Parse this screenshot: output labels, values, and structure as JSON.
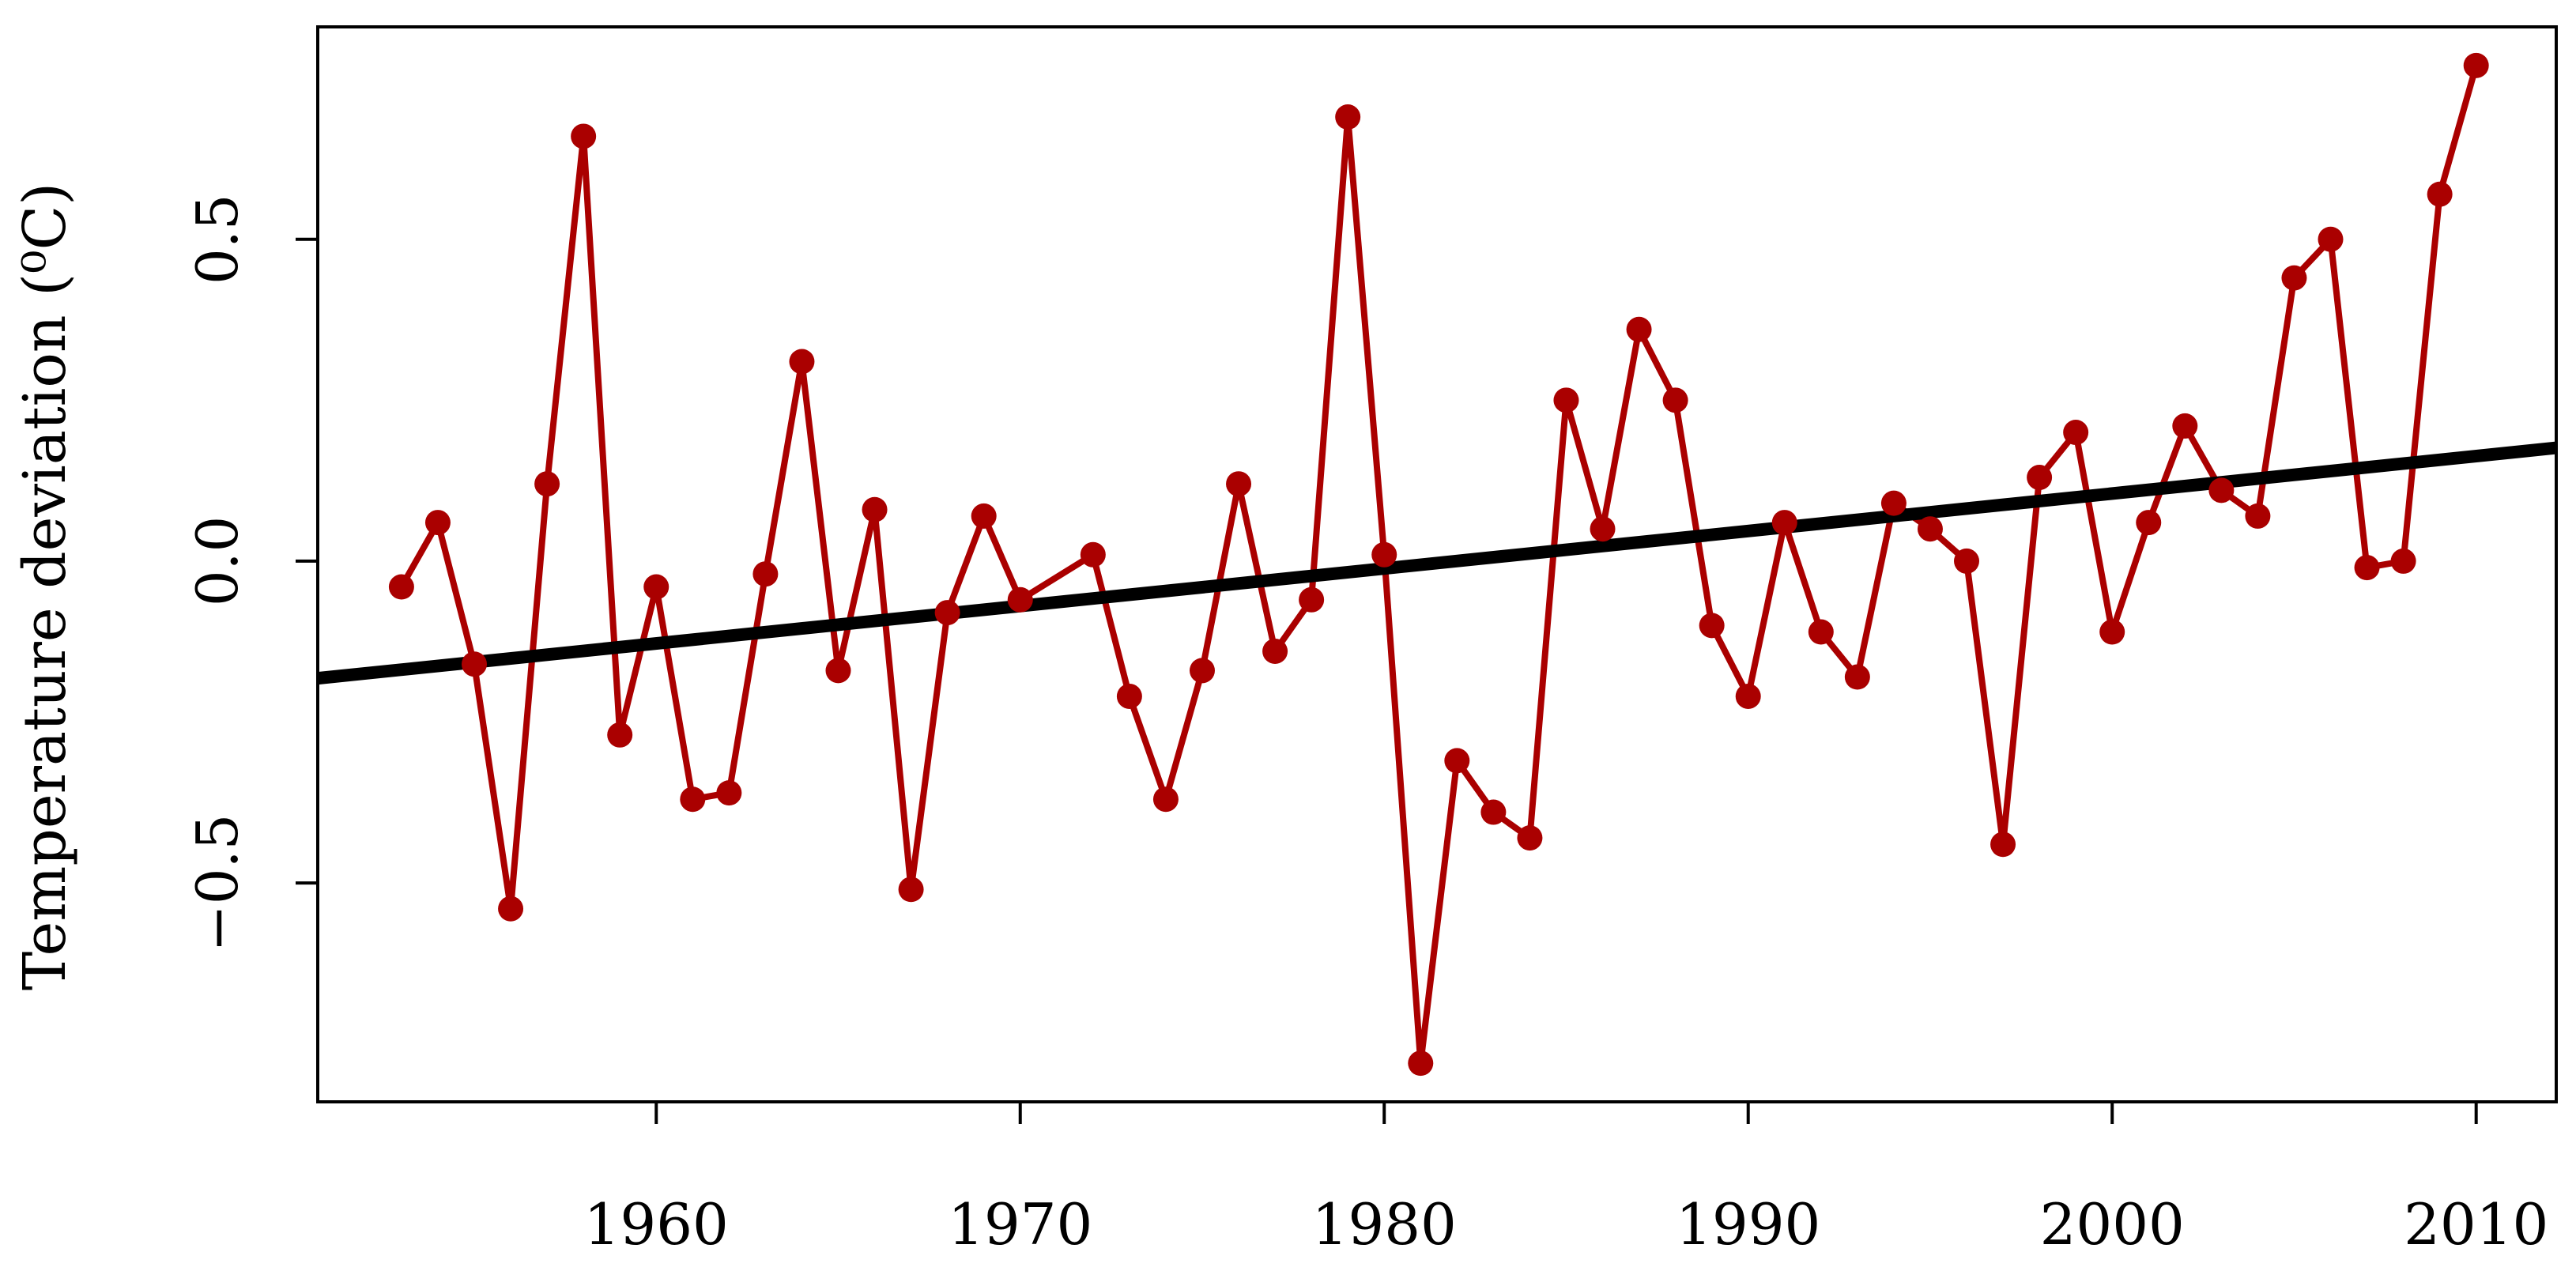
{
  "chart_data": {
    "type": "line",
    "title": "",
    "xlabel": "",
    "ylabel": "Temperature deviation (⁰C)",
    "xlim": [
      1950.7,
      2012.2
    ],
    "ylim": [
      -0.84,
      0.83
    ],
    "grid": false,
    "x_ticks": [
      1960,
      1970,
      1980,
      1990,
      2000,
      2010
    ],
    "x_tick_labels": [
      "1960",
      "1970",
      "1980",
      "1990",
      "2000",
      "2010"
    ],
    "y_ticks": [
      -0.5,
      0.0,
      0.5
    ],
    "y_tick_labels": [
      "−0.5",
      "0.0",
      "0.5"
    ],
    "series": [
      {
        "color": "#AA0000",
        "marker": "circle",
        "x": [
          1953,
          1954,
          1955,
          1956,
          1957,
          1958,
          1959,
          1960,
          1961,
          1962,
          1963,
          1964,
          1965,
          1966,
          1967,
          1968,
          1969,
          1970,
          1972,
          1973,
          1974,
          1975,
          1976,
          1977,
          1978,
          1979,
          1980,
          1981,
          1982,
          1983,
          1984,
          1985,
          1986,
          1987,
          1988,
          1989,
          1990,
          1991,
          1992,
          1993,
          1994,
          1995,
          1996,
          1997,
          1998,
          1999,
          2000,
          2001,
          2002,
          2003,
          2004,
          2005,
          2006,
          2007,
          2008,
          2009,
          2010
        ],
        "values": [
          -0.04,
          0.06,
          -0.16,
          -0.54,
          0.12,
          0.66,
          -0.27,
          -0.04,
          -0.37,
          -0.36,
          -0.02,
          0.31,
          -0.17,
          0.08,
          -0.51,
          -0.08,
          0.07,
          -0.06,
          0.01,
          -0.21,
          -0.37,
          -0.17,
          0.12,
          -0.14,
          -0.06,
          0.69,
          0.01,
          -0.78,
          -0.31,
          -0.39,
          -0.43,
          0.25,
          0.05,
          0.36,
          0.25,
          -0.1,
          -0.21,
          0.06,
          -0.11,
          -0.18,
          0.09,
          0.05,
          0.0,
          -0.44,
          0.13,
          0.2,
          -0.11,
          0.06,
          0.21,
          0.11,
          0.07,
          0.44,
          0.5,
          -0.01,
          0.0,
          0.57,
          0.77
        ]
      },
      {
        "color": "#000000",
        "marker": "none",
        "x": [
          1950.7,
          2012.2
        ],
        "values": [
          -0.182,
          0.176
        ]
      }
    ]
  }
}
